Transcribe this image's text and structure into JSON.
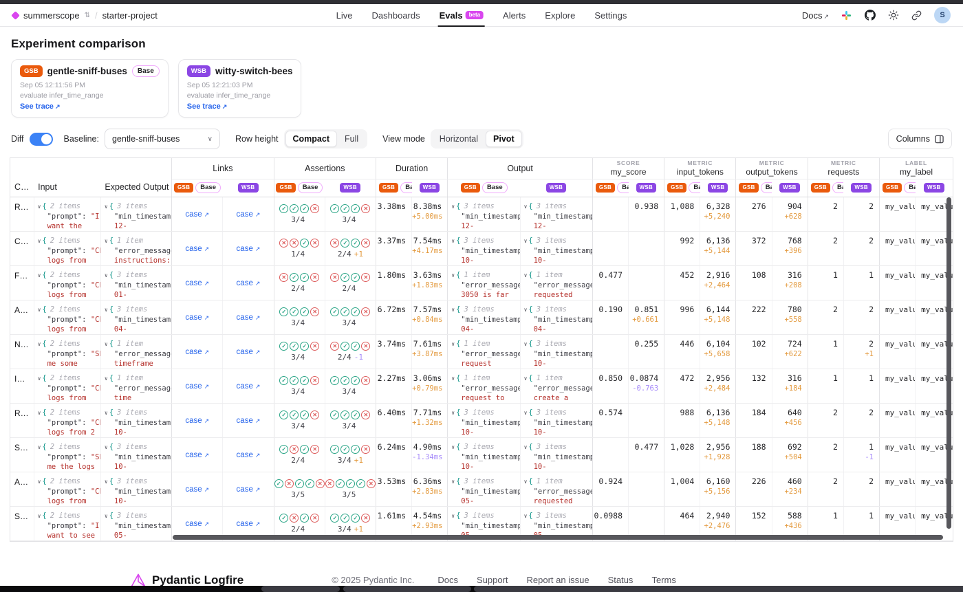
{
  "nav": {
    "org": "summerscope",
    "project": "starter-project",
    "items": [
      "Live",
      "Dashboards",
      "Evals",
      "Alerts",
      "Explore",
      "Settings"
    ],
    "active_item": "Evals",
    "beta": "beta",
    "docs": "Docs",
    "avatar": "S",
    "icons": [
      "slack-icon",
      "github-icon",
      "theme-icon",
      "share-link-icon"
    ]
  },
  "page": {
    "title": "Experiment comparison"
  },
  "experiments": {
    "gsb": {
      "abbr": "GSB",
      "name": "gentle-sniff-buses",
      "base_label": "Base",
      "date": "Sep 05 12:11:56 PM",
      "task": "evaluate infer_time_range",
      "trace": "See trace",
      "color": "#ea5a0c"
    },
    "wsb": {
      "abbr": "WSB",
      "name": "witty-switch-bees",
      "date": "Sep 05 12:21:03 PM",
      "task": "evaluate infer_time_range",
      "trace": "See trace",
      "color": "#8b46e4"
    }
  },
  "controls": {
    "diff_label": "Diff",
    "baseline_label": "Baseline:",
    "baseline_value": "gentle-sniff-buses",
    "row_height_label": "Row height",
    "row_height_options": [
      "Compact",
      "Full"
    ],
    "row_height_active": "Compact",
    "view_mode_label": "View mode",
    "view_mode_options": [
      "Horizontal",
      "Pivot"
    ],
    "view_mode_active": "Pivot",
    "columns_button": "Columns"
  },
  "header": {
    "case": "C…",
    "input": "Input",
    "expected": "Expected Output",
    "groups": [
      {
        "label": "Links"
      },
      {
        "label": "Assertions"
      },
      {
        "label": "Duration"
      },
      {
        "label": "Output"
      },
      {
        "kind": "SCORE",
        "name": "my_score"
      },
      {
        "kind": "METRIC",
        "name": "input_tokens"
      },
      {
        "kind": "METRIC",
        "name": "output_tokens"
      },
      {
        "kind": "METRIC",
        "name": "requests"
      },
      {
        "kind": "LABEL",
        "name": "my_label"
      }
    ]
  },
  "rows": [
    {
      "c": "R…",
      "in": {
        "n": "2 items",
        "k": "\"prompt\":",
        "v": "\"I",
        "x": "want the"
      },
      "ex": {
        "n": "3 items",
        "k": "\"min_timestamp",
        "v": "",
        "x": "12-"
      },
      "lg": "case",
      "lw": "case",
      "ag": {
        "p": "cccx",
        "t": "3/4",
        "d": "",
        "s": ""
      },
      "aw": {
        "p": "cccx",
        "t": "3/4",
        "d": "",
        "s": ""
      },
      "dg": "3.38ms",
      "dw": {
        "v": "8.38ms",
        "d": "+5.00ms",
        "s": "pos"
      },
      "og": {
        "n": "3 items",
        "k": "\"min_timestamp",
        "v": "",
        "x": "12-"
      },
      "ow": {
        "n": "3 items",
        "k": "\"min_timestamp",
        "v": "",
        "x": "12-"
      },
      "sg": "",
      "sw": {
        "v": "0.938",
        "d": "",
        "s": ""
      },
      "ig": "1,088",
      "iw": {
        "v": "6,328",
        "d": "+5,240",
        "s": "pos"
      },
      "tg": "276",
      "tw": {
        "v": "904",
        "d": "+628",
        "s": "pos"
      },
      "rg": "2",
      "rw": {
        "v": "2",
        "d": "",
        "s": ""
      },
      "mg": "my_value_",
      "mw": "my_value"
    },
    {
      "c": "C…",
      "in": {
        "n": "2 items",
        "k": "\"prompt\":",
        "v": "\"Ch",
        "x": "logs from"
      },
      "ex": {
        "n": "1 item",
        "k": "\"error_message",
        "v": "",
        "x": "instructions:"
      },
      "lg": "case",
      "lw": "case",
      "ag": {
        "p": "xxcx",
        "t": "1/4",
        "d": "",
        "s": ""
      },
      "aw": {
        "p": "xccx",
        "t": "2/4",
        "d": "+1",
        "s": "pos"
      },
      "dg": "3.37ms",
      "dw": {
        "v": "7.54ms",
        "d": "+4.17ms",
        "s": "pos"
      },
      "og": {
        "n": "3 items",
        "k": "\"min_timestamp",
        "v": "",
        "x": "10-"
      },
      "ow": {
        "n": "3 items",
        "k": "\"min_timestamp",
        "v": "",
        "x": "10-"
      },
      "sg": "",
      "sw": {
        "v": "",
        "d": "",
        "s": ""
      },
      "ig": "992",
      "iw": {
        "v": "6,136",
        "d": "+5,144",
        "s": "pos"
      },
      "tg": "372",
      "tw": {
        "v": "768",
        "d": "+396",
        "s": "pos"
      },
      "rg": "2",
      "rw": {
        "v": "2",
        "d": "",
        "s": ""
      },
      "mg": "my_value_",
      "mw": "my_value"
    },
    {
      "c": "F…",
      "in": {
        "n": "2 items",
        "k": "\"prompt\":",
        "v": "\"Ch",
        "x": "logs from"
      },
      "ex": {
        "n": "3 items",
        "k": "\"min_timestamp",
        "v": "",
        "x": "01-"
      },
      "lg": "case",
      "lw": "case",
      "ag": {
        "p": "xccx",
        "t": "2/4",
        "d": "",
        "s": ""
      },
      "aw": {
        "p": "xccx",
        "t": "2/4",
        "d": "",
        "s": ""
      },
      "dg": "1.80ms",
      "dw": {
        "v": "3.63ms",
        "d": "+1.83ms",
        "s": "pos"
      },
      "og": {
        "n": "1 item",
        "k": "\"error_message",
        "v": "",
        "x": "3050 is far"
      },
      "ow": {
        "n": "1 item",
        "k": "\"error_message",
        "v": "",
        "x": "requested"
      },
      "sg": "0.477",
      "sw": {
        "v": "",
        "d": "",
        "s": ""
      },
      "ig": "452",
      "iw": {
        "v": "2,916",
        "d": "+2,464",
        "s": "pos"
      },
      "tg": "108",
      "tw": {
        "v": "316",
        "d": "+208",
        "s": "pos"
      },
      "rg": "1",
      "rw": {
        "v": "1",
        "d": "",
        "s": ""
      },
      "mg": "my_value_",
      "mw": "my_value"
    },
    {
      "c": "A…",
      "in": {
        "n": "2 items",
        "k": "\"prompt\":",
        "v": "\"Ch",
        "x": "logs from"
      },
      "ex": {
        "n": "3 items",
        "k": "\"min_timestamp",
        "v": "",
        "x": "04-"
      },
      "lg": "case",
      "lw": "case",
      "ag": {
        "p": "cccx",
        "t": "3/4",
        "d": "",
        "s": ""
      },
      "aw": {
        "p": "cccx",
        "t": "3/4",
        "d": "",
        "s": ""
      },
      "dg": "6.72ms",
      "dw": {
        "v": "7.57ms",
        "d": "+0.84ms",
        "s": "pos"
      },
      "og": {
        "n": "3 items",
        "k": "\"min_timestamp",
        "v": "",
        "x": "04-"
      },
      "ow": {
        "n": "3 items",
        "k": "\"min_timestamp",
        "v": "",
        "x": "04-"
      },
      "sg": "0.190",
      "sw": {
        "v": "0.851",
        "d": "+0.661",
        "s": "pos"
      },
      "ig": "996",
      "iw": {
        "v": "6,144",
        "d": "+5,148",
        "s": "pos"
      },
      "tg": "222",
      "tw": {
        "v": "780",
        "d": "+558",
        "s": "pos"
      },
      "rg": "2",
      "rw": {
        "v": "2",
        "d": "",
        "s": ""
      },
      "mg": "my_value_",
      "mw": "my_value"
    },
    {
      "c": "N…",
      "in": {
        "n": "2 items",
        "k": "\"prompt\":",
        "v": "\"Sh",
        "x": "me some"
      },
      "ex": {
        "n": "1 item",
        "k": "\"error_message",
        "v": "",
        "x": "timeframe"
      },
      "lg": "case",
      "lw": "case",
      "ag": {
        "p": "cccx",
        "t": "3/4",
        "d": "",
        "s": ""
      },
      "aw": {
        "p": "xccx",
        "t": "2/4",
        "d": "-1",
        "s": "neg"
      },
      "dg": "3.74ms",
      "dw": {
        "v": "7.61ms",
        "d": "+3.87ms",
        "s": "pos"
      },
      "og": {
        "n": "1 item",
        "k": "\"error_message",
        "v": "",
        "x": "request"
      },
      "ow": {
        "n": "3 items",
        "k": "\"min_timestamp",
        "v": "",
        "x": "10-"
      },
      "sg": "",
      "sw": {
        "v": "0.255",
        "d": "",
        "s": ""
      },
      "ig": "446",
      "iw": {
        "v": "6,104",
        "d": "+5,658",
        "s": "pos"
      },
      "tg": "102",
      "tw": {
        "v": "724",
        "d": "+622",
        "s": "pos"
      },
      "rg": "1",
      "rw": {
        "v": "2",
        "d": "+1",
        "s": "pos"
      },
      "mg": "my_value_",
      "mw": "my_value"
    },
    {
      "c": "I…",
      "in": {
        "n": "2 items",
        "k": "\"prompt\":",
        "v": "\"Ch",
        "x": "logs from"
      },
      "ex": {
        "n": "1 item",
        "k": "\"error_message",
        "v": "",
        "x": "time"
      },
      "lg": "case",
      "lw": "case",
      "ag": {
        "p": "cccx",
        "t": "3/4",
        "d": "",
        "s": ""
      },
      "aw": {
        "p": "cccx",
        "t": "3/4",
        "d": "",
        "s": ""
      },
      "dg": "2.27ms",
      "dw": {
        "v": "3.06ms",
        "d": "+0.79ms",
        "s": "pos"
      },
      "og": {
        "n": "1 item",
        "k": "\"error_message",
        "v": "",
        "x": "request to"
      },
      "ow": {
        "n": "1 item",
        "k": "\"error_message",
        "v": "",
        "x": "create a"
      },
      "sg": "0.850",
      "sw": {
        "v": "0.0874",
        "d": "-0.763",
        "s": "neg"
      },
      "ig": "472",
      "iw": {
        "v": "2,956",
        "d": "+2,484",
        "s": "pos"
      },
      "tg": "132",
      "tw": {
        "v": "316",
        "d": "+184",
        "s": "pos"
      },
      "rg": "1",
      "rw": {
        "v": "1",
        "d": "",
        "s": ""
      },
      "mg": "my_value_",
      "mw": "my_value"
    },
    {
      "c": "R…",
      "in": {
        "n": "2 items",
        "k": "\"prompt\":",
        "v": "\"Ch",
        "x": "logs from 2"
      },
      "ex": {
        "n": "3 items",
        "k": "\"min_timestamp",
        "v": "",
        "x": "10-"
      },
      "lg": "case",
      "lw": "case",
      "ag": {
        "p": "cccx",
        "t": "3/4",
        "d": "",
        "s": ""
      },
      "aw": {
        "p": "cccx",
        "t": "3/4",
        "d": "",
        "s": ""
      },
      "dg": "6.40ms",
      "dw": {
        "v": "7.71ms",
        "d": "+1.32ms",
        "s": "pos"
      },
      "og": {
        "n": "3 items",
        "k": "\"min_timestamp",
        "v": "",
        "x": "10-"
      },
      "ow": {
        "n": "3 items",
        "k": "\"min_timestamp",
        "v": "",
        "x": "10-"
      },
      "sg": "0.574",
      "sw": {
        "v": "",
        "d": "",
        "s": ""
      },
      "ig": "988",
      "iw": {
        "v": "6,136",
        "d": "+5,148",
        "s": "pos"
      },
      "tg": "184",
      "tw": {
        "v": "640",
        "d": "+456",
        "s": "pos"
      },
      "rg": "2",
      "rw": {
        "v": "2",
        "d": "",
        "s": ""
      },
      "mg": "my_value_",
      "mw": "my_value"
    },
    {
      "c": "S…",
      "in": {
        "n": "2 items",
        "k": "\"prompt\":",
        "v": "\"Sh",
        "x": "me the logs"
      },
      "ex": {
        "n": "3 items",
        "k": "\"min_timestamp",
        "v": "",
        "x": "10-"
      },
      "lg": "case",
      "lw": "case",
      "ag": {
        "p": "cxcx",
        "t": "2/4",
        "d": "",
        "s": ""
      },
      "aw": {
        "p": "cccx",
        "t": "3/4",
        "d": "+1",
        "s": "pos"
      },
      "dg": "6.24ms",
      "dw": {
        "v": "4.90ms",
        "d": "-1.34ms",
        "s": "neg"
      },
      "og": {
        "n": "3 items",
        "k": "\"min_timestamp",
        "v": "",
        "x": "10-"
      },
      "ow": {
        "n": "3 items",
        "k": "\"min_timestamp",
        "v": "",
        "x": "10-"
      },
      "sg": "",
      "sw": {
        "v": "0.477",
        "d": "",
        "s": ""
      },
      "ig": "1,028",
      "iw": {
        "v": "2,956",
        "d": "+1,928",
        "s": "pos"
      },
      "tg": "188",
      "tw": {
        "v": "692",
        "d": "+504",
        "s": "pos"
      },
      "rg": "2",
      "rw": {
        "v": "1",
        "d": "-1",
        "s": "neg"
      },
      "mg": "my_value_",
      "mw": "my_value"
    },
    {
      "c": "A…",
      "in": {
        "n": "2 items",
        "k": "\"prompt\":",
        "v": "\"Ch",
        "x": "logs from"
      },
      "ex": {
        "n": "3 items",
        "k": "\"min_timestamp",
        "v": "",
        "x": "10-"
      },
      "lg": "case",
      "lw": "case",
      "ag": {
        "p": "cxccx",
        "t": "3/5",
        "d": "",
        "s": ""
      },
      "aw": {
        "p": "xcccx",
        "t": "3/5",
        "d": "",
        "s": ""
      },
      "dg": "3.53ms",
      "dw": {
        "v": "6.36ms",
        "d": "+2.83ms",
        "s": "pos"
      },
      "og": {
        "n": "3 items",
        "k": "\"min_timestamp",
        "v": "",
        "x": "05-"
      },
      "ow": {
        "n": "1 item",
        "k": "\"error_message",
        "v": "",
        "x": "requested"
      },
      "sg": "0.924",
      "sw": {
        "v": "",
        "d": "",
        "s": ""
      },
      "ig": "1,004",
      "iw": {
        "v": "6,160",
        "d": "+5,156",
        "s": "pos"
      },
      "tg": "226",
      "tw": {
        "v": "460",
        "d": "+234",
        "s": "pos"
      },
      "rg": "2",
      "rw": {
        "v": "2",
        "d": "",
        "s": ""
      },
      "mg": "my_value_",
      "mw": "my_value"
    },
    {
      "c": "S…",
      "in": {
        "n": "2 items",
        "k": "\"prompt\":",
        "v": "\"I",
        "x": "want to see"
      },
      "ex": {
        "n": "3 items",
        "k": "\"min_timestamp",
        "v": "",
        "x": "05-"
      },
      "lg": "case",
      "lw": "case",
      "ag": {
        "p": "cxcx",
        "t": "2/4",
        "d": "",
        "s": ""
      },
      "aw": {
        "p": "cccx",
        "t": "3/4",
        "d": "+1",
        "s": "pos"
      },
      "dg": "1.61ms",
      "dw": {
        "v": "4.54ms",
        "d": "+2.93ms",
        "s": "pos"
      },
      "og": {
        "n": "3 items",
        "k": "\"min_timestamp",
        "v": "",
        "x": "05-"
      },
      "ow": {
        "n": "3 items",
        "k": "\"min_timestamp",
        "v": "",
        "x": "05-"
      },
      "sg": "0.0988",
      "sw": {
        "v": "",
        "d": "",
        "s": ""
      },
      "ig": "464",
      "iw": {
        "v": "2,940",
        "d": "+2,476",
        "s": "pos"
      },
      "tg": "152",
      "tw": {
        "v": "588",
        "d": "+436",
        "s": "pos"
      },
      "rg": "1",
      "rw": {
        "v": "1",
        "d": "",
        "s": ""
      },
      "mg": "my_value_",
      "mw": "my_value"
    }
  ],
  "footer": {
    "brand": "Pydantic Logfire",
    "copyright": "© 2025 Pydantic Inc.",
    "links": [
      "Docs",
      "Support",
      "Report an issue",
      "Status",
      "Terms"
    ]
  },
  "colors": {
    "gsb": "#ea5a0c",
    "wsb": "#8b46e4",
    "accent": "#d946ef",
    "link": "#2563eb",
    "delta_pos": "#e3993c",
    "delta_neg": "#a78bfa",
    "pass": "#2aa586",
    "fail": "#dd5b5b"
  }
}
